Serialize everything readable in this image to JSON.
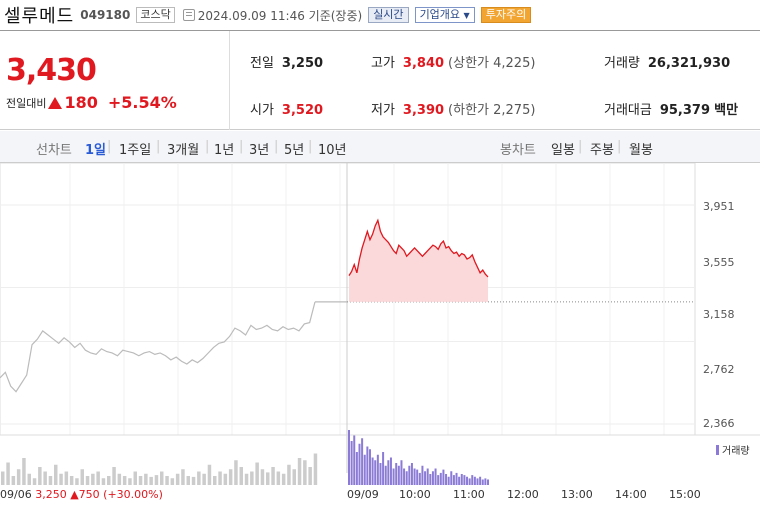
{
  "header": {
    "name": "셀루메드",
    "code": "049180",
    "market": "코스닥",
    "time": "2024.09.09 11:46 기준(장중)",
    "realtime_btn": "실시간",
    "company_btn": "기업개요",
    "warn_btn": "투자주의"
  },
  "price": {
    "current": "3,430",
    "change_label": "전일대비",
    "change": "180",
    "change_pct": "+5.54%"
  },
  "stats": {
    "prev_label": "전일",
    "prev": "3,250",
    "open_label": "시가",
    "open": "3,520",
    "high_label": "고가",
    "high": "3,840",
    "high_limit": "(상한가 4,225)",
    "low_label": "저가",
    "low": "3,390",
    "low_limit": "(하한가 2,275)",
    "volume_label": "거래량",
    "volume": "26,321,930",
    "amount_label": "거래대금",
    "amount": "95,379",
    "amount_unit": "백만"
  },
  "period_bar": {
    "line_label": "선차트",
    "line_periods": [
      "1일",
      "1주일",
      "3개월",
      "1년",
      "3년",
      "5년",
      "10년"
    ],
    "candle_label": "봉차트",
    "candle_periods": [
      "일봉",
      "주봉",
      "월봉"
    ],
    "active": "1일"
  },
  "colors": {
    "up": "#e0181f",
    "prev_line": "#bbbbbb",
    "volume": "#8c7bd6"
  },
  "chart_data": {
    "type": "line",
    "y_ticks": [
      "3,951",
      "3,555",
      "3,158",
      "2,762",
      "2,366"
    ],
    "x_ticks": [
      "09/09",
      "10:00",
      "11:00",
      "12:00",
      "13:00",
      "14:00",
      "15:00"
    ],
    "prev_day_label": "09/06",
    "prev_day_close": "3,250",
    "prev_day_change": "750",
    "prev_day_pct": "(+30.00%)",
    "volume_label": "거래량",
    "ylim": [
      2366,
      3951
    ],
    "prev_close": 3250,
    "series": [
      {
        "values": [
          2700,
          2740,
          2640,
          2600,
          2660,
          2720,
          2940,
          2980,
          3040,
          3010,
          2980,
          2950,
          2990,
          2960,
          2920,
          2950,
          2900,
          2880,
          2870,
          2910,
          2890,
          2880,
          2860,
          2900,
          2890,
          2880,
          2860,
          2880,
          2890,
          2870,
          2880,
          2860,
          2830,
          2850,
          2820,
          2800,
          2830,
          2810,
          2840,
          2880,
          2920,
          2950,
          2960,
          3000,
          3060,
          3040,
          3010,
          3080,
          3050,
          3060,
          3080,
          3050,
          3040,
          3070,
          3050,
          3060,
          3040,
          3090,
          3100,
          3250
        ]
      },
      {
        "values": [
          3440,
          3470,
          3520,
          3460,
          3560,
          3640,
          3700,
          3760,
          3700,
          3740,
          3800,
          3840,
          3760,
          3720,
          3700,
          3680,
          3650,
          3620,
          3600,
          3660,
          3640,
          3620,
          3580,
          3600,
          3620,
          3640,
          3620,
          3600,
          3580,
          3600,
          3620,
          3640,
          3660,
          3650,
          3630,
          3670,
          3690,
          3640,
          3650,
          3620,
          3600,
          3610,
          3580,
          3600,
          3590,
          3560,
          3570,
          3590,
          3540,
          3500,
          3460,
          3480,
          3450,
          3430
        ]
      }
    ],
    "volume": [
      {
        "values": [
          30,
          50,
          20,
          35,
          60,
          25,
          15,
          40,
          30,
          20,
          45,
          25,
          30,
          20,
          15,
          35,
          20,
          25,
          30,
          15,
          20,
          40,
          25,
          20,
          15,
          30,
          20,
          25,
          18,
          22,
          30,
          20,
          15,
          25,
          35,
          20,
          18,
          30,
          25,
          45,
          20,
          30,
          25,
          35,
          55,
          40,
          25,
          30,
          50,
          35,
          28,
          40,
          30,
          25,
          45,
          35,
          60,
          55,
          40,
          70
        ]
      },
      {
        "values": [
          100,
          80,
          90,
          60,
          75,
          85,
          55,
          70,
          65,
          50,
          45,
          55,
          40,
          60,
          35,
          45,
          50,
          30,
          40,
          35,
          45,
          30,
          25,
          35,
          40,
          30,
          28,
          22,
          35,
          25,
          30,
          20,
          25,
          30,
          18,
          22,
          28,
          20,
          15,
          25,
          18,
          22,
          15,
          20,
          18,
          15,
          12,
          18,
          15,
          12,
          15,
          10,
          12,
          10
        ]
      }
    ]
  }
}
